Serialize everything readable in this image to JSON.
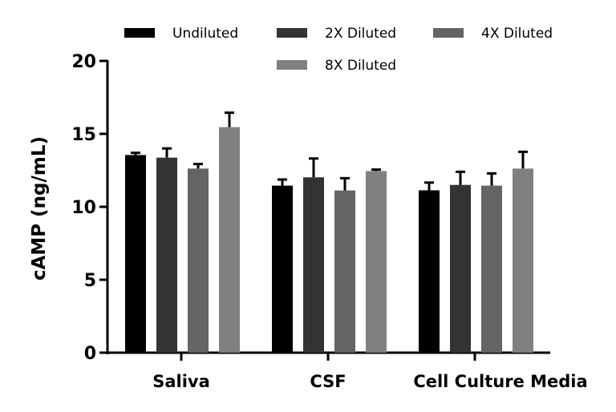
{
  "chart_data": {
    "type": "bar",
    "title": "",
    "xlabel": "",
    "ylabel": "cAMP (ng/mL)",
    "ylim": [
      0,
      20
    ],
    "yticks": [
      0,
      5,
      10,
      15,
      20
    ],
    "categories": [
      "Saliva",
      "CSF",
      "Cell Culture Media"
    ],
    "legend_position": "top",
    "grid": false,
    "series": [
      {
        "name": "Undiluted",
        "color": "#000000",
        "values": [
          13.55,
          11.45,
          11.13
        ],
        "error": [
          0.15,
          0.42,
          0.53
        ]
      },
      {
        "name": "2X Diluted",
        "color": "#333333",
        "values": [
          13.37,
          12.02,
          11.5
        ],
        "error": [
          0.63,
          1.29,
          0.9
        ]
      },
      {
        "name": "4X Diluted",
        "color": "#646464",
        "values": [
          12.62,
          11.12,
          11.45
        ],
        "error": [
          0.31,
          0.84,
          0.84
        ]
      },
      {
        "name": "8X Diluted",
        "color": "#808080",
        "values": [
          15.46,
          12.45,
          12.62
        ],
        "error": [
          0.99,
          0.1,
          1.15
        ]
      }
    ]
  }
}
